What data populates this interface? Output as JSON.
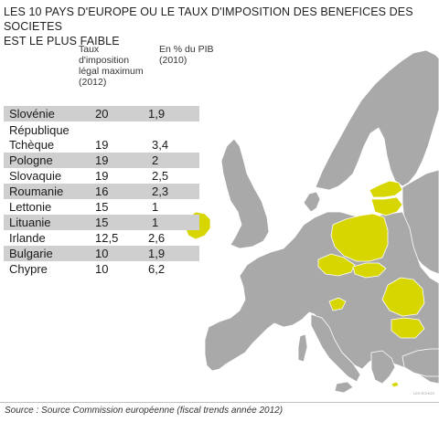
{
  "title": {
    "line1": "LES 10 PAYS D'EUROPE OU LE TAUX D'IMPOSITION DES BENEFICES DES SOCIETES",
    "line2": "EST LE PLUS FAIBLE"
  },
  "columns": {
    "rate": [
      "Taux",
      "d'imposition",
      "légal maximum",
      "(2012)"
    ],
    "pib": [
      "En % du PIB",
      "(2010)"
    ]
  },
  "rows": [
    {
      "name": "Slovénie",
      "rate": "20",
      "pib": "1,9",
      "shaded": true
    },
    {
      "name": "Tchèque",
      "prefix": "République",
      "rate": "19",
      "pib": "3,4",
      "shaded": false
    },
    {
      "name": "Pologne",
      "rate": "19",
      "pib": "2",
      "shaded": true
    },
    {
      "name": "Slovaquie",
      "rate": "19",
      "pib": "2,5",
      "shaded": false
    },
    {
      "name": "Roumanie",
      "rate": "16",
      "pib": "2,3",
      "shaded": true
    },
    {
      "name": "Lettonie",
      "rate": "15",
      "pib": "1",
      "shaded": false
    },
    {
      "name": "Lituanie",
      "rate": "15",
      "pib": "1",
      "shaded": true
    },
    {
      "name": "Irlande",
      "rate": "12,5",
      "pib": "2,6",
      "shaded": false
    },
    {
      "name": "Bulgarie",
      "rate": "10",
      "pib": "1,9",
      "shaded": true
    },
    {
      "name": "Chypre",
      "rate": "10",
      "pib": "6,2",
      "shaded": false
    }
  ],
  "colors": {
    "highlight": "#d7d600",
    "land": "#a9a9a9",
    "border": "#ffffff",
    "sea": "#ffffff",
    "row_shade": "#cfcfcf"
  },
  "source": "Source : Source Commission européenne (fiscal trends année 2012)",
  "signature": "LES ÉCHOS"
}
